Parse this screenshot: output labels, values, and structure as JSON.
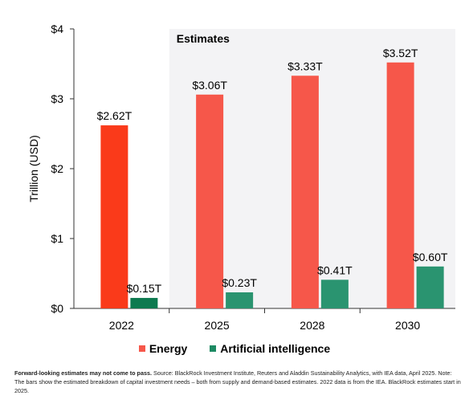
{
  "chart_data": {
    "type": "bar",
    "categories": [
      "2022",
      "2025",
      "2028",
      "2030"
    ],
    "series": [
      {
        "name": "Energy",
        "values": [
          2.62,
          3.06,
          3.33,
          3.52
        ],
        "labels": [
          "$2.62T",
          "$3.06T",
          "$3.33T",
          "$3.52T"
        ]
      },
      {
        "name": "Artificial intelligence",
        "values": [
          0.15,
          0.23,
          0.41,
          0.6
        ],
        "labels": [
          "$0.15T",
          "$0.23T",
          "$0.41T",
          "$0.60T"
        ]
      }
    ],
    "ylabel": "Trillion (USD)",
    "xlabel": "",
    "ylim": [
      0,
      4
    ],
    "yticks": [
      0,
      1,
      2,
      3,
      4
    ],
    "ytick_labels": [
      "$0",
      "$1",
      "$2",
      "$3",
      "$4"
    ],
    "estimates_label": "Estimates",
    "estimates_start_category": "2025",
    "legend_position": "bottom-center",
    "grid": false
  },
  "colors": {
    "energy_actual": "#fa3a1a",
    "energy_estimate": "#f6574a",
    "ai_actual": "#0e7a50",
    "ai_estimate": "#2a9470",
    "estimates_shade": "#f3f3f5"
  },
  "legend": [
    {
      "label": "Energy",
      "color": "#f6574a"
    },
    {
      "label": "Artificial intelligence",
      "color": "#1d8a63"
    }
  ],
  "footnote": {
    "bold": "Forward-looking estimates may not come to pass.",
    "text": " Source: BlackRock Investment Institute, Reuters and Aladdin Sustainability Analytics, with IEA data, April 2025. Note: The bars show the estimated breakdown of capital investment needs – both from supply and demand-based estimates. 2022 data is from the IEA. BlackRock estimates start in 2025."
  }
}
